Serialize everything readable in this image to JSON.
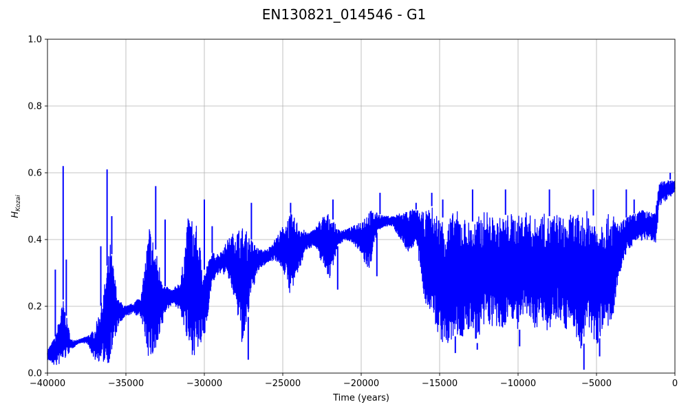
{
  "chart_data": {
    "type": "line",
    "title": "EN130821_014546 - G1",
    "xlabel": "Time (years)",
    "ylabel": "H",
    "ylabel_subscript": "Kozai",
    "xlim": [
      -40000,
      0
    ],
    "ylim": [
      0.0,
      1.0
    ],
    "xticks": [
      -40000,
      -35000,
      -30000,
      -25000,
      -20000,
      -15000,
      -10000,
      -5000,
      0
    ],
    "xtick_labels": [
      "−40000",
      "−35000",
      "−30000",
      "−25000",
      "−20000",
      "−15000",
      "−10000",
      "−5000",
      "0"
    ],
    "yticks": [
      0.0,
      0.2,
      0.4,
      0.6,
      0.8,
      1.0
    ],
    "ytick_labels": [
      "0.0",
      "0.2",
      "0.4",
      "0.6",
      "0.8",
      "1.0"
    ],
    "grid": true,
    "series": [
      {
        "color": "#0000ff",
        "envelope": {
          "x": [
            -40000,
            -39500,
            -39000,
            -38500,
            -38000,
            -37500,
            -37000,
            -36500,
            -36000,
            -35500,
            -35000,
            -34500,
            -34000,
            -33500,
            -33000,
            -32500,
            -32000,
            -31500,
            -31000,
            -30500,
            -30000,
            -29500,
            -29000,
            -28500,
            -28000,
            -27500,
            -27000,
            -26500,
            -26000,
            -25500,
            -25000,
            -24500,
            -24000,
            -23500,
            -23000,
            -22500,
            -22000,
            -21500,
            -21000,
            -20500,
            -20000,
            -19500,
            -19000,
            -18500,
            -18000,
            -17500,
            -17000,
            -16500,
            -16000,
            -15500,
            -15000,
            -14500,
            -14000,
            -13500,
            -13000,
            -12500,
            -12000,
            -11500,
            -11000,
            -10500,
            -10000,
            -9500,
            -9000,
            -8500,
            -8000,
            -7500,
            -7000,
            -6500,
            -6000,
            -5500,
            -5000,
            -4500,
            -4000,
            -3500,
            -3000,
            -2500,
            -2000,
            -1500,
            -1200,
            -1000,
            -500,
            0
          ],
          "low": [
            0.04,
            0.02,
            0.03,
            0.07,
            0.09,
            0.09,
            0.04,
            0.03,
            0.03,
            0.14,
            0.17,
            0.18,
            0.16,
            0.03,
            0.06,
            0.18,
            0.21,
            0.18,
            0.06,
            0.05,
            0.1,
            0.27,
            0.3,
            0.29,
            0.2,
            0.06,
            0.24,
            0.31,
            0.33,
            0.34,
            0.31,
            0.23,
            0.3,
            0.37,
            0.38,
            0.33,
            0.28,
            0.38,
            0.4,
            0.39,
            0.35,
            0.3,
            0.42,
            0.44,
            0.44,
            0.4,
            0.36,
            0.39,
            0.22,
            0.17,
            0.1,
            0.07,
            0.11,
            0.1,
            0.13,
            0.08,
            0.15,
            0.13,
            0.12,
            0.18,
            0.12,
            0.17,
            0.13,
            0.15,
            0.12,
            0.17,
            0.13,
            0.14,
            0.06,
            0.13,
            0.08,
            0.14,
            0.13,
            0.3,
            0.37,
            0.39,
            0.4,
            0.39,
            0.39,
            0.5,
            0.52,
            0.54
          ],
          "high": [
            0.07,
            0.11,
            0.22,
            0.1,
            0.1,
            0.11,
            0.13,
            0.22,
            0.39,
            0.22,
            0.2,
            0.21,
            0.24,
            0.45,
            0.35,
            0.26,
            0.25,
            0.28,
            0.48,
            0.44,
            0.31,
            0.36,
            0.36,
            0.4,
            0.43,
            0.44,
            0.4,
            0.37,
            0.37,
            0.4,
            0.44,
            0.48,
            0.45,
            0.42,
            0.43,
            0.47,
            0.48,
            0.43,
            0.43,
            0.44,
            0.46,
            0.49,
            0.48,
            0.47,
            0.47,
            0.48,
            0.49,
            0.49,
            0.48,
            0.5,
            0.47,
            0.46,
            0.49,
            0.47,
            0.45,
            0.47,
            0.49,
            0.46,
            0.47,
            0.48,
            0.47,
            0.49,
            0.46,
            0.48,
            0.47,
            0.48,
            0.46,
            0.48,
            0.47,
            0.49,
            0.46,
            0.47,
            0.48,
            0.45,
            0.47,
            0.48,
            0.49,
            0.48,
            0.5,
            0.57,
            0.58,
            0.58
          ]
        },
        "spikes": [
          {
            "x": -39500,
            "y": 0.31
          },
          {
            "x": -39000,
            "y": 0.62
          },
          {
            "x": -38800,
            "y": 0.34
          },
          {
            "x": -36200,
            "y": 0.61
          },
          {
            "x": -36600,
            "y": 0.38
          },
          {
            "x": -35900,
            "y": 0.47
          },
          {
            "x": -33100,
            "y": 0.56
          },
          {
            "x": -32500,
            "y": 0.46
          },
          {
            "x": -30000,
            "y": 0.52
          },
          {
            "x": -29500,
            "y": 0.44
          },
          {
            "x": -27200,
            "y": 0.04
          },
          {
            "x": -27000,
            "y": 0.51
          },
          {
            "x": -24500,
            "y": 0.51
          },
          {
            "x": -21800,
            "y": 0.52
          },
          {
            "x": -21500,
            "y": 0.25
          },
          {
            "x": -18800,
            "y": 0.54
          },
          {
            "x": -19000,
            "y": 0.29
          },
          {
            "x": -16500,
            "y": 0.51
          },
          {
            "x": -15500,
            "y": 0.54
          },
          {
            "x": -14800,
            "y": 0.52
          },
          {
            "x": -14000,
            "y": 0.06
          },
          {
            "x": -12900,
            "y": 0.55
          },
          {
            "x": -12600,
            "y": 0.07
          },
          {
            "x": -10800,
            "y": 0.55
          },
          {
            "x": -9900,
            "y": 0.08
          },
          {
            "x": -8000,
            "y": 0.55
          },
          {
            "x": -5800,
            "y": 0.01
          },
          {
            "x": -5200,
            "y": 0.55
          },
          {
            "x": -4800,
            "y": 0.05
          },
          {
            "x": -3100,
            "y": 0.55
          },
          {
            "x": -2600,
            "y": 0.52
          },
          {
            "x": -300,
            "y": 0.6
          }
        ]
      }
    ]
  }
}
